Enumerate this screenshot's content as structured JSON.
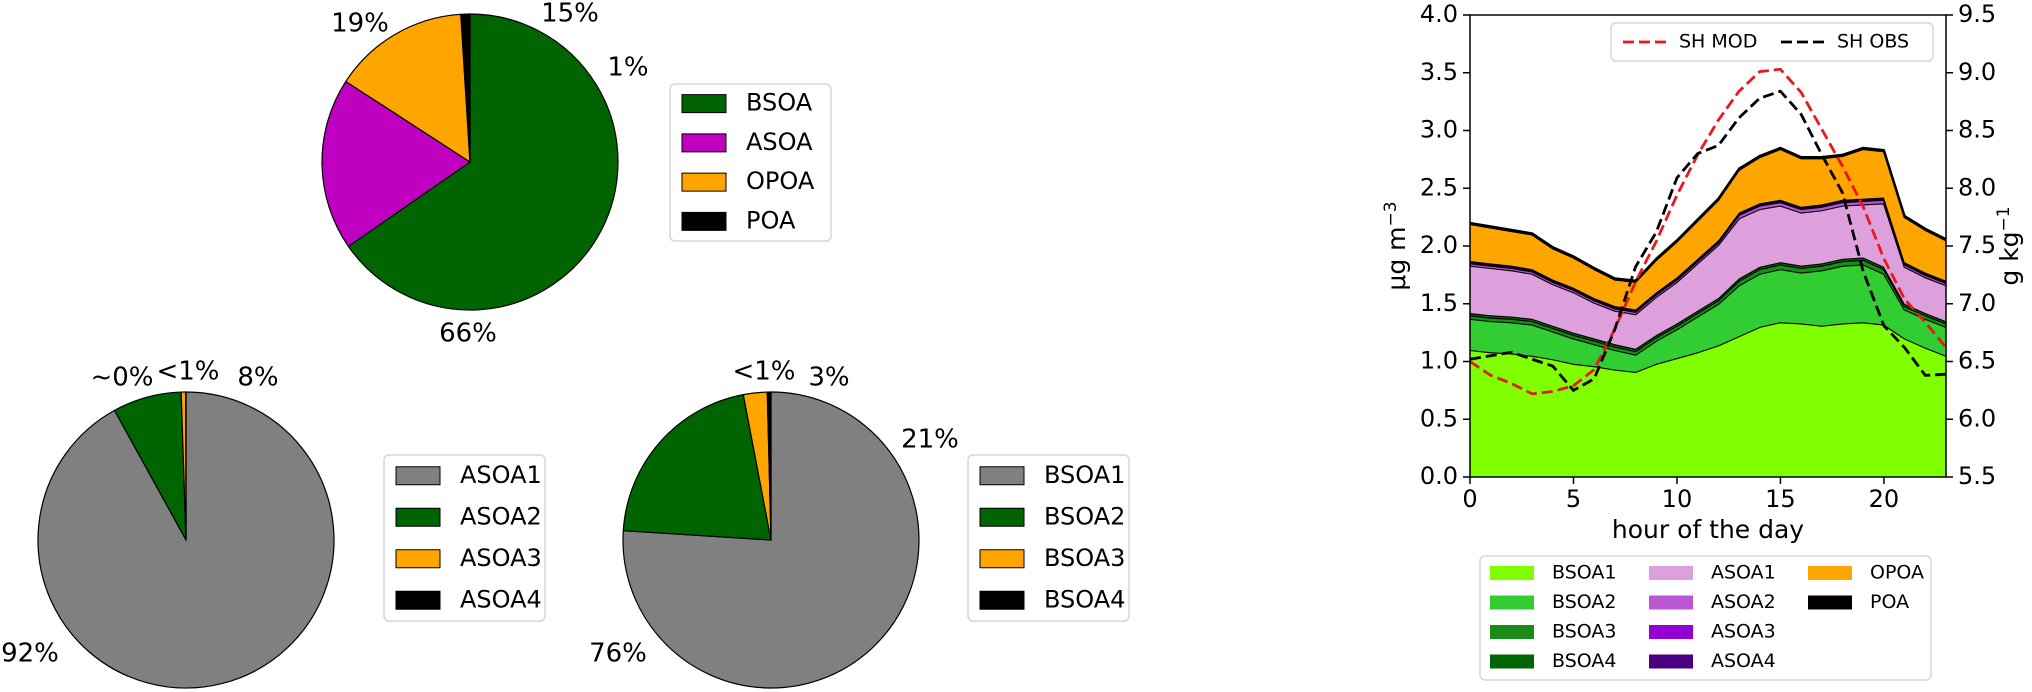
{
  "chart_data": [
    {
      "type": "pie",
      "labels": [
        "BSOA",
        "ASOA",
        "OPOA",
        "POA"
      ],
      "values": [
        66,
        19,
        15,
        1
      ],
      "percent_labels": [
        "66%",
        "19%",
        "15%",
        "1%"
      ],
      "colors": [
        "#006400",
        "#c000c0",
        "#ffa500",
        "#000000"
      ],
      "legend": "right"
    },
    {
      "type": "pie",
      "labels": [
        "ASOA1",
        "ASOA2",
        "ASOA3",
        "ASOA4"
      ],
      "values": [
        92,
        7.5,
        0.5,
        0.02
      ],
      "percent_labels": [
        "92%",
        "8%",
        "<1%",
        "~0%"
      ],
      "colors": [
        "#808080",
        "#006400",
        "#ffa500",
        "#000000"
      ],
      "legend": "right"
    },
    {
      "type": "pie",
      "labels": [
        "BSOA1",
        "BSOA2",
        "BSOA3",
        "BSOA4"
      ],
      "values": [
        76,
        21,
        2.6,
        0.4
      ],
      "percent_labels": [
        "76%",
        "21%",
        "3%",
        "<1%"
      ],
      "colors": [
        "#808080",
        "#006400",
        "#ffa500",
        "#000000"
      ],
      "legend": "right"
    },
    {
      "type": "area",
      "xlabel": "hour of the day",
      "ylabel": "μg m",
      "ylabel_sup": "−3",
      "y2label": "g kg",
      "y2label_sup": "−1",
      "xlim": [
        0,
        23
      ],
      "ylim": [
        0,
        4
      ],
      "y2lim": [
        5.5,
        9.5
      ],
      "xticks": [
        0,
        5,
        10,
        15,
        20
      ],
      "yticks": [
        "0.0",
        "0.5",
        "1.0",
        "1.5",
        "2.0",
        "2.5",
        "3.0",
        "3.5",
        "4.0"
      ],
      "y2ticks": [
        "5.5",
        "6.0",
        "6.5",
        "7.0",
        "7.5",
        "8.0",
        "8.5",
        "9.0",
        "9.5"
      ],
      "x": [
        0,
        1,
        2,
        3,
        4,
        5,
        6,
        7,
        8,
        9,
        10,
        11,
        12,
        13,
        14,
        15,
        16,
        17,
        18,
        19,
        20,
        21,
        22,
        23
      ],
      "stacked_series": [
        {
          "name": "BSOA1",
          "color": "#7fff00",
          "values": [
            1.1,
            1.08,
            1.07,
            1.05,
            1.02,
            0.98,
            0.96,
            0.93,
            0.91,
            0.98,
            1.03,
            1.08,
            1.14,
            1.22,
            1.3,
            1.34,
            1.33,
            1.31,
            1.33,
            1.34,
            1.32,
            1.2,
            1.12,
            1.05
          ]
        },
        {
          "name": "BSOA2",
          "color": "#32cd32",
          "values": [
            0.27,
            0.27,
            0.27,
            0.27,
            0.24,
            0.22,
            0.19,
            0.17,
            0.15,
            0.2,
            0.25,
            0.31,
            0.36,
            0.44,
            0.46,
            0.46,
            0.44,
            0.48,
            0.5,
            0.5,
            0.44,
            0.25,
            0.25,
            0.25
          ]
        },
        {
          "name": "BSOA3",
          "color": "#1a8c1a",
          "values": [
            0.03,
            0.03,
            0.03,
            0.03,
            0.03,
            0.03,
            0.03,
            0.03,
            0.03,
            0.03,
            0.03,
            0.03,
            0.03,
            0.04,
            0.04,
            0.04,
            0.04,
            0.04,
            0.04,
            0.04,
            0.04,
            0.03,
            0.03,
            0.03
          ]
        },
        {
          "name": "BSOA4",
          "color": "#006400",
          "values": [
            0.02,
            0.02,
            0.02,
            0.02,
            0.02,
            0.02,
            0.02,
            0.02,
            0.02,
            0.02,
            0.02,
            0.02,
            0.02,
            0.02,
            0.02,
            0.02,
            0.02,
            0.02,
            0.02,
            0.02,
            0.02,
            0.02,
            0.02,
            0.02
          ]
        },
        {
          "name": "ASOA1",
          "color": "#dda0dd",
          "values": [
            0.41,
            0.41,
            0.4,
            0.39,
            0.36,
            0.35,
            0.31,
            0.29,
            0.3,
            0.33,
            0.36,
            0.41,
            0.46,
            0.52,
            0.5,
            0.49,
            0.46,
            0.46,
            0.46,
            0.46,
            0.55,
            0.32,
            0.31,
            0.31
          ]
        },
        {
          "name": "ASOA2",
          "color": "#ba55d3",
          "values": [
            0.02,
            0.02,
            0.02,
            0.02,
            0.02,
            0.02,
            0.02,
            0.02,
            0.02,
            0.02,
            0.02,
            0.02,
            0.02,
            0.03,
            0.03,
            0.03,
            0.03,
            0.03,
            0.03,
            0.03,
            0.03,
            0.02,
            0.02,
            0.02
          ]
        },
        {
          "name": "ASOA3",
          "color": "#9400d3",
          "values": [
            0.01,
            0.01,
            0.01,
            0.01,
            0.01,
            0.01,
            0.01,
            0.01,
            0.01,
            0.01,
            0.01,
            0.01,
            0.01,
            0.01,
            0.01,
            0.01,
            0.01,
            0.01,
            0.01,
            0.01,
            0.01,
            0.01,
            0.01,
            0.01
          ]
        },
        {
          "name": "ASOA4",
          "color": "#4b0082",
          "values": [
            0.01,
            0.01,
            0.01,
            0.01,
            0.01,
            0.01,
            0.01,
            0.01,
            0.01,
            0.01,
            0.01,
            0.01,
            0.01,
            0.01,
            0.01,
            0.01,
            0.01,
            0.01,
            0.01,
            0.01,
            0.01,
            0.01,
            0.01,
            0.01
          ]
        },
        {
          "name": "OPOA",
          "color": "#ffa500",
          "values": [
            0.32,
            0.31,
            0.3,
            0.3,
            0.27,
            0.26,
            0.25,
            0.23,
            0.24,
            0.28,
            0.31,
            0.33,
            0.35,
            0.37,
            0.4,
            0.44,
            0.42,
            0.4,
            0.38,
            0.43,
            0.4,
            0.39,
            0.37,
            0.35
          ]
        },
        {
          "name": "POA",
          "color": "#000000",
          "values": [
            0.01,
            0.01,
            0.01,
            0.01,
            0.01,
            0.01,
            0.01,
            0.01,
            0.01,
            0.01,
            0.01,
            0.01,
            0.01,
            0.01,
            0.01,
            0.01,
            0.01,
            0.01,
            0.01,
            0.01,
            0.01,
            0.01,
            0.01,
            0.01
          ]
        }
      ],
      "line_series": [
        {
          "name": "SH MOD",
          "axis": "right",
          "style": "dashed",
          "color": "#e8191d",
          "values": [
            6.5,
            6.38,
            6.31,
            6.22,
            6.24,
            6.29,
            6.43,
            6.78,
            7.19,
            7.54,
            7.94,
            8.29,
            8.59,
            8.84,
            9.01,
            9.03,
            8.83,
            8.51,
            8.19,
            7.84,
            7.39,
            7.04,
            6.84,
            6.62
          ]
        },
        {
          "name": "SH OBS",
          "axis": "right",
          "style": "dashed",
          "color": "#000000",
          "values": [
            6.52,
            6.55,
            6.58,
            6.52,
            6.46,
            6.25,
            6.35,
            6.78,
            7.32,
            7.62,
            8.09,
            8.3,
            8.37,
            8.61,
            8.78,
            8.84,
            8.64,
            8.29,
            7.96,
            7.28,
            6.81,
            6.62,
            6.38,
            6.39
          ]
        }
      ],
      "legend_lines": "top-right",
      "legend_areas": "below"
    }
  ]
}
